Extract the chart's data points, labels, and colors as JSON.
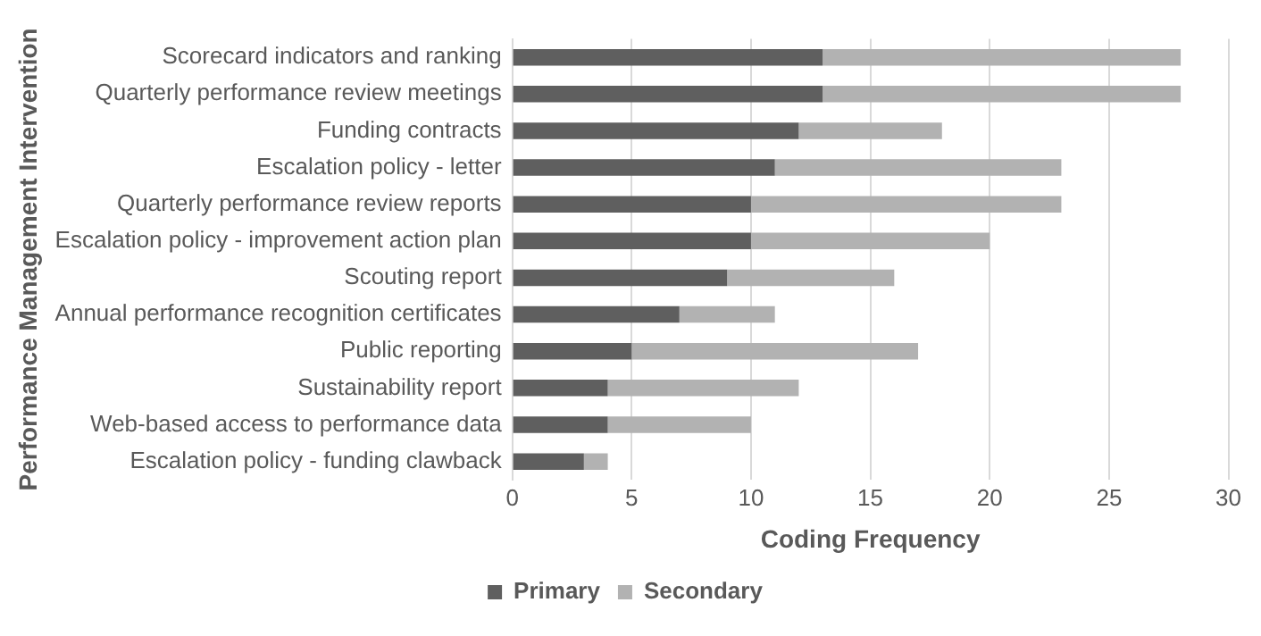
{
  "chart_data": {
    "type": "bar",
    "orientation": "horizontal",
    "stacked": true,
    "xlabel": "Coding Frequency",
    "ylabel": "Performance Management Intervention",
    "categories": [
      "Scorecard indicators and ranking",
      "Quarterly performance review meetings",
      "Funding contracts",
      "Escalation policy - letter",
      "Quarterly performance review reports",
      "Escalation policy - improvement action plan",
      "Scouting report",
      "Annual performance recognition certificates",
      "Public reporting",
      "Sustainability report",
      "Web-based access to performance data",
      "Escalation policy - funding clawback"
    ],
    "series": [
      {
        "name": "Primary",
        "color": "#5f5f5f",
        "values": [
          13,
          13,
          12,
          11,
          10,
          10,
          9,
          7,
          5,
          4,
          4,
          3
        ]
      },
      {
        "name": "Secondary",
        "color": "#b2b2b2",
        "values": [
          15,
          15,
          6,
          12,
          13,
          10,
          7,
          4,
          12,
          8,
          6,
          1
        ]
      }
    ],
    "xlim": [
      0,
      30
    ],
    "xticks": [
      0,
      5,
      10,
      15,
      20,
      25,
      30
    ],
    "grid": "x",
    "legend": "bottom"
  }
}
